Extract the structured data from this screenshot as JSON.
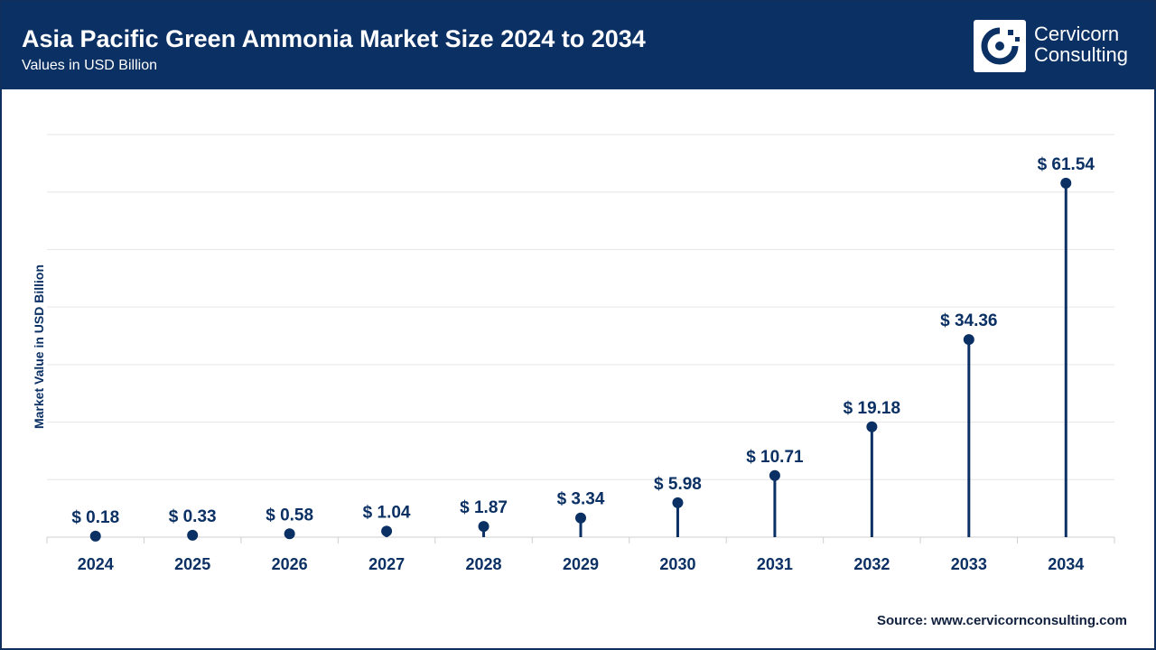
{
  "header": {
    "title": "Asia Pacific Green Ammonia Market Size 2024 to 2034",
    "subtitle": "Values in USD Billion"
  },
  "logo": {
    "line1": "Cervicorn",
    "line2": "Consulting"
  },
  "source": {
    "label": "Source:",
    "url": "www.cervicornconsulting.com"
  },
  "colors": {
    "header_bg": "#0b3064",
    "mark": "#0b3064",
    "grid": "#e6e6e6",
    "axis": "#cfcfcf"
  },
  "chart_data": {
    "type": "lollipop",
    "title": "Asia Pacific Green Ammonia Market Size 2024 to 2034",
    "subtitle": "Values in USD Billion",
    "xlabel": "",
    "ylabel": "Market Value in USD Billion",
    "categories": [
      "2024",
      "2025",
      "2026",
      "2027",
      "2028",
      "2029",
      "2030",
      "2031",
      "2032",
      "2033",
      "2034"
    ],
    "values": [
      0.18,
      0.33,
      0.58,
      1.04,
      1.87,
      3.34,
      5.98,
      10.71,
      19.18,
      34.36,
      61.54
    ],
    "value_labels": [
      "$ 0.18",
      "$ 0.33",
      "$ 0.58",
      "$ 1.04",
      "$ 1.87",
      "$ 3.34",
      "$ 5.98",
      "$ 10.71",
      "$ 19.18",
      "$ 34.36",
      "$ 61.54"
    ],
    "ylim": [
      0,
      70
    ],
    "grid_lines": 7,
    "grid": true
  }
}
